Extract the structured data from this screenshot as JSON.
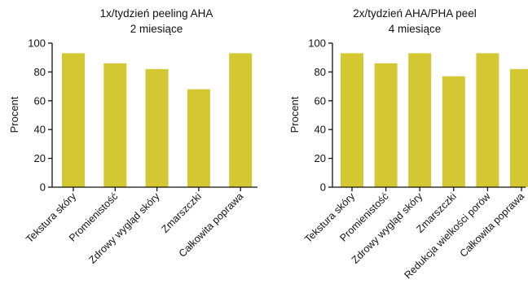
{
  "chart_data": [
    {
      "type": "bar",
      "title": "1x/tydzień peeling AHA",
      "subtitle": "2 miesiące",
      "xlabel": "",
      "ylabel": "Procent",
      "ylim": [
        0,
        100
      ],
      "yticks": [
        0,
        20,
        40,
        60,
        80,
        100
      ],
      "categories": [
        "Tekstura skóry",
        "Promienistość",
        "Zdrowy wygląd skóry",
        "Zmarszczki",
        "Całkowita poprawa"
      ],
      "values": [
        93,
        86,
        82,
        68,
        93
      ],
      "bar_color": "#D4C832",
      "grid": false,
      "legend": false
    },
    {
      "type": "bar",
      "title": "2x/tydzień AHA/PHA peel",
      "subtitle": "4 miesiące",
      "xlabel": "",
      "ylabel": "Procent",
      "ylim": [
        0,
        100
      ],
      "yticks": [
        0,
        20,
        40,
        60,
        80,
        100
      ],
      "categories": [
        "Tekstura skóry",
        "Promienistość",
        "Zdrowy wygląd skóry",
        "Zmarszczki",
        "Redukcja wielkości porów",
        "Całkowita poprawa"
      ],
      "values": [
        93,
        86,
        93,
        77,
        93,
        82
      ],
      "bar_color": "#D4C832",
      "grid": false,
      "legend": false
    }
  ]
}
